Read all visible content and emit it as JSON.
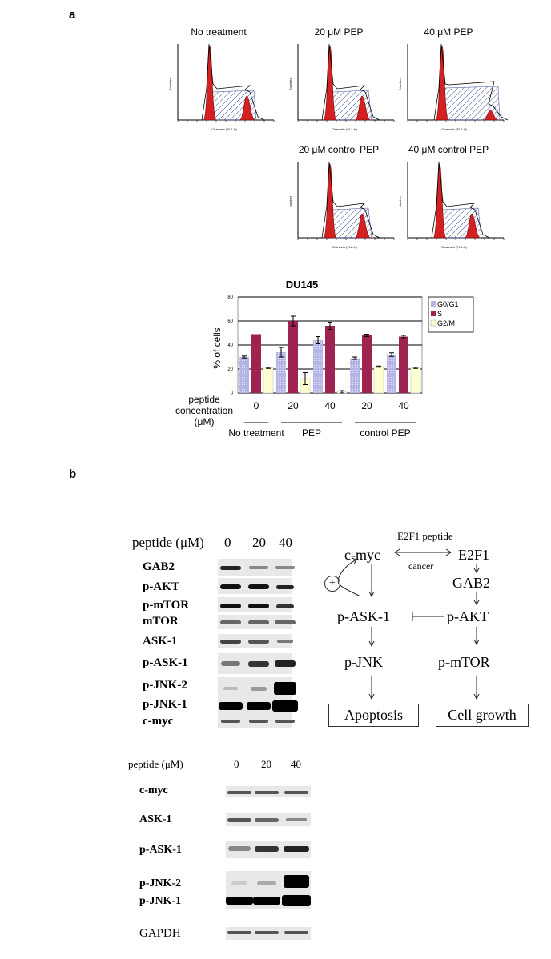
{
  "figure": {
    "panel_a_label": "a",
    "panel_b_label": "b"
  },
  "histograms": [
    {
      "title": "No treatment",
      "axis_x": "Channels (FL2-H)",
      "axis_y": "Number"
    },
    {
      "title": "20 μM PEP",
      "axis_x": "Channels (FL2-H)",
      "axis_y": "Number"
    },
    {
      "title": "40 μM PEP",
      "axis_x": "Channels (FL2-H)",
      "axis_y": "Number"
    },
    {
      "title": "20 μM control PEP",
      "axis_x": "Channels (FL2-H)",
      "axis_y": "Number"
    },
    {
      "title": "40 μM control PEP",
      "axis_x": "Channels (FL2-H)",
      "axis_y": "Number"
    }
  ],
  "chart_data": {
    "type": "bar",
    "title": "DU145",
    "ylabel": "% of cells",
    "xlabel": "",
    "ylim": [
      0,
      80
    ],
    "yticks": [
      "0",
      "20",
      "40",
      "60",
      "80"
    ],
    "categories": [
      "0",
      "20",
      "40",
      "20",
      "40"
    ],
    "category_axis_label": [
      "peptide",
      "concentration",
      "(μM)"
    ],
    "groups": [
      {
        "label": "No treatment",
        "span": [
          0,
          0
        ]
      },
      {
        "label": "PEP",
        "span": [
          1,
          2
        ]
      },
      {
        "label": "control PEP",
        "span": [
          3,
          4
        ]
      }
    ],
    "series": [
      {
        "name": "G0/G1",
        "color": "#b4b4e6",
        "values": [
          30,
          34,
          44,
          29,
          32
        ],
        "errors": [
          0.8,
          4,
          3,
          1,
          1.5
        ]
      },
      {
        "name": "S",
        "color": "#9e2350",
        "values": [
          49,
          60,
          56,
          48,
          47
        ],
        "errors": [
          0,
          4,
          3,
          1,
          1
        ]
      },
      {
        "name": "G2/M",
        "color": "#ffffd2",
        "values": [
          21,
          12,
          1,
          22,
          21
        ],
        "errors": [
          0.5,
          5,
          1,
          0.5,
          0.5
        ]
      }
    ],
    "legend_position": "top-right"
  },
  "western_top": {
    "header_label": "peptide (μM)",
    "concentrations": [
      "0",
      "20",
      "40"
    ],
    "proteins": [
      "GAB2",
      "p-AKT",
      "p-mTOR",
      "mTOR",
      "ASK-1",
      "p-ASK-1",
      "p-JNK-2",
      "p-JNK-1",
      "c-myc"
    ]
  },
  "pathway": {
    "e2f1_peptide": "E2F1 peptide",
    "cmyc": "c-myc",
    "e2f1": "E2F1",
    "cancer": "cancer",
    "gab2": "GAB2",
    "plus": "+",
    "pask1": "p-ASK-1",
    "pakt": "p-AKT",
    "pjnk": "p-JNK",
    "pmtor": "p-mTOR",
    "apoptosis": "Apoptosis",
    "cell_growth": "Cell growth"
  },
  "western_bottom": {
    "header_label": "peptide (μM)",
    "concentrations": [
      "0",
      "20",
      "40"
    ],
    "proteins": [
      "c-myc",
      "ASK-1",
      "p-ASK-1",
      "p-JNK-2",
      "p-JNK-1",
      "GAPDH"
    ]
  }
}
